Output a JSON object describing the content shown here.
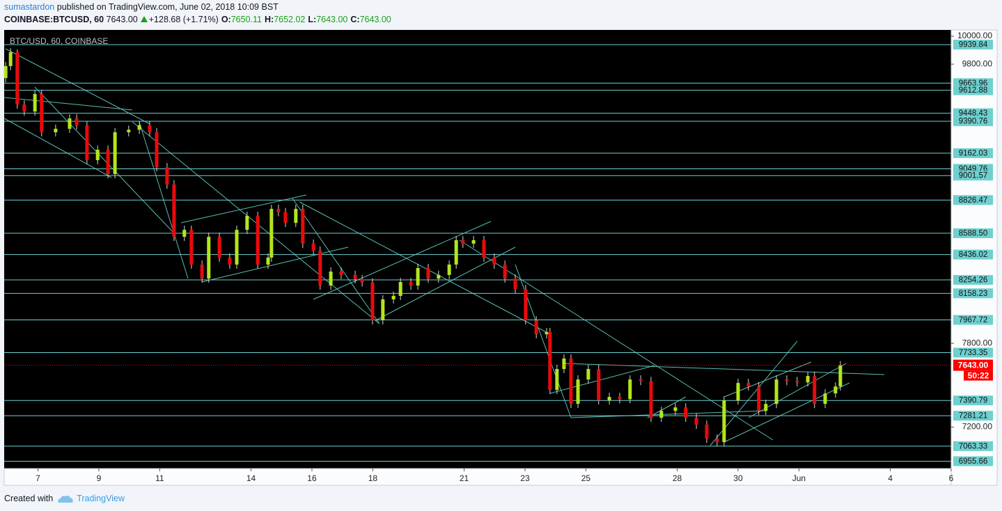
{
  "header": {
    "author": "sumastardon",
    "published": "published on TradingView.com, June 02, 2018 10:09 BST",
    "symbol": "COINBASE:BTCUSD, 60",
    "price": "7643.00",
    "change": "+128.68 (+1.71%)",
    "ohlc": [
      {
        "label": "O:",
        "value": "7650.11"
      },
      {
        "label": "H:",
        "value": "7652.02"
      },
      {
        "label": "L:",
        "value": "7643.00"
      },
      {
        "label": "C:",
        "value": "7643.00"
      }
    ]
  },
  "footer": {
    "created": "Created with",
    "brand": "TradingView"
  },
  "chart_data": {
    "type": "candlestick",
    "title": "BTC/USD, 60, COINBASE",
    "up_color": "#b3e61a",
    "down_color": "#ea0a0a",
    "wick_color": "#d8d8d8",
    "x": [
      5.94,
      6.1,
      6.32,
      6.55,
      6.9,
      7.12,
      7.58,
      8.04,
      8.27,
      8.61,
      8.96,
      9.3,
      9.53,
      9.98,
      10.33,
      10.67,
      10.9,
      11.24,
      11.47,
      11.81,
      12.04,
      12.39,
      12.61,
      12.96,
      13.3,
      13.53,
      13.87,
      14.22,
      14.56,
      14.67,
      14.9,
      15.13,
      15.47,
      15.7,
      16.05,
      16.27,
      16.62,
      16.96,
      17.42,
      17.65,
      17.99,
      18.33,
      18.68,
      18.91,
      19.25,
      19.48,
      19.82,
      20.16,
      20.51,
      20.74,
      20.96,
      21.31,
      21.65,
      21.99,
      22.34,
      22.68,
      23.02,
      23.37,
      23.71,
      23.82,
      24.05,
      24.28,
      24.51,
      24.74,
      25.08,
      25.42,
      25.77,
      26.11,
      26.45,
      26.8,
      27.14,
      27.48,
      27.94,
      28.28,
      28.63,
      28.97,
      29.31,
      29.54,
      30.0,
      30.34,
      30.68,
      30.91,
      31.26,
      31.6,
      31.94,
      32.29,
      32.51,
      32.86,
      33.2,
      33.36
    ],
    "open": [
      9700,
      9786,
      9885,
      9511,
      9461,
      9586,
      9312,
      9337,
      9411,
      9362,
      9112,
      9187,
      9012,
      9312,
      9330,
      9362,
      9312,
      9062,
      8938,
      8563,
      8613,
      8364,
      8264,
      8563,
      8414,
      8364,
      8613,
      8713,
      8364,
      8414,
      8763,
      8740,
      8663,
      8763,
      8514,
      8464,
      8214,
      8314,
      8290,
      8260,
      8236,
      7965,
      8115,
      8140,
      8239,
      8214,
      8339,
      8264,
      8290,
      8364,
      8539,
      8514,
      8539,
      8414,
      8364,
      8264,
      8189,
      7965,
      7865,
      7880,
      7466,
      7616,
      7691,
      7366,
      7541,
      7616,
      7391,
      7416,
      7400,
      7541,
      7530,
      7267,
      7316,
      7341,
      7267,
      7217,
      7117,
      7092,
      7391,
      7516,
      7491,
      7316,
      7366,
      7541,
      7530,
      7520,
      7566,
      7366,
      7441,
      7491
    ],
    "high": [
      9816,
      9915,
      9905,
      9541,
      9616,
      9616,
      9367,
      9441,
      9441,
      9392,
      9217,
      9217,
      9342,
      9360,
      9392,
      9392,
      9342,
      9092,
      8968,
      8643,
      8643,
      8394,
      8593,
      8593,
      8444,
      8643,
      8743,
      8743,
      8444,
      8793,
      8793,
      8770,
      8793,
      8793,
      8544,
      8494,
      8344,
      8344,
      8320,
      8290,
      8266,
      8145,
      8170,
      8269,
      8269,
      8369,
      8369,
      8320,
      8394,
      8569,
      8569,
      8569,
      8569,
      8444,
      8394,
      8294,
      8219,
      7995,
      7910,
      7910,
      7646,
      7721,
      7721,
      7571,
      7646,
      7646,
      7446,
      7446,
      7571,
      7571,
      7560,
      7346,
      7371,
      7371,
      7297,
      7247,
      7147,
      7421,
      7546,
      7546,
      7521,
      7396,
      7571,
      7571,
      7560,
      7596,
      7596,
      7471,
      7521,
      7673
    ],
    "low": [
      9670,
      9756,
      9481,
      9431,
      9431,
      9282,
      9282,
      9307,
      9332,
      9082,
      9082,
      8982,
      8982,
      9282,
      9300,
      9282,
      9032,
      8908,
      8533,
      8533,
      8334,
      8234,
      8234,
      8384,
      8334,
      8334,
      8583,
      8334,
      8334,
      8384,
      8710,
      8633,
      8633,
      8484,
      8434,
      8184,
      8184,
      8260,
      8230,
      8206,
      7935,
      7935,
      8085,
      8110,
      8184,
      8184,
      8234,
      8234,
      8260,
      8334,
      8484,
      8484,
      8384,
      8334,
      8234,
      8159,
      7935,
      7835,
      7835,
      7436,
      7436,
      7586,
      7336,
      7336,
      7511,
      7361,
      7361,
      7370,
      7370,
      7500,
      7237,
      7237,
      7286,
      7237,
      7187,
      7087,
      7062,
      7062,
      7361,
      7461,
      7286,
      7286,
      7336,
      7500,
      7490,
      7490,
      7336,
      7336,
      7411,
      7461
    ],
    "close": [
      9786,
      9885,
      9511,
      9461,
      9586,
      9312,
      9337,
      9411,
      9362,
      9112,
      9187,
      9012,
      9312,
      9330,
      9362,
      9312,
      9062,
      8938,
      8563,
      8613,
      8364,
      8264,
      8563,
      8414,
      8364,
      8613,
      8713,
      8364,
      8414,
      8763,
      8740,
      8663,
      8763,
      8514,
      8464,
      8214,
      8314,
      8290,
      8260,
      8236,
      7965,
      8115,
      8140,
      8239,
      8214,
      8339,
      8264,
      8290,
      8364,
      8539,
      8514,
      8539,
      8414,
      8364,
      8264,
      8189,
      7965,
      7865,
      7880,
      7466,
      7616,
      7691,
      7366,
      7541,
      7616,
      7391,
      7416,
      7400,
      7541,
      7530,
      7267,
      7316,
      7341,
      7267,
      7217,
      7117,
      7092,
      7391,
      7516,
      7491,
      7316,
      7366,
      7541,
      7530,
      7520,
      7566,
      7366,
      7441,
      7491,
      7643
    ],
    "xlim": [
      5.89,
      37
    ],
    "xticks": [
      7,
      9,
      11,
      14,
      16,
      18,
      21,
      23,
      25,
      28,
      30,
      {
        "value": 32,
        "label": "Jun"
      },
      {
        "value": 35,
        "label": "4"
      },
      {
        "value": 37,
        "label": "6"
      }
    ],
    "ylim": [
      6903,
      10045
    ],
    "yticks": [
      {
        "value": 10000,
        "label": "10000.00"
      },
      {
        "value": 9800,
        "label": "9800.00"
      },
      {
        "value": 7800,
        "label": "7800.00"
      },
      {
        "value": 7200,
        "label": "7200.00"
      }
    ],
    "horizontal_lines": {
      "color": "#6fd0d0",
      "values": [
        9939.84,
        9663.96,
        9612.88,
        9448.43,
        9390.76,
        9162.03,
        9049.76,
        9001.57,
        8826.47,
        8588.5,
        8436.02,
        8254.26,
        8158.23,
        7967.72,
        7733.35,
        7390.79,
        7281.21,
        7063.33,
        6955.66
      ],
      "value_labels": [
        "9939.84",
        "9663.96",
        "9612.88",
        "9448.43",
        "9390.76",
        "9162.03",
        "9049.76",
        "9001.57",
        "8826.47",
        "8588.50",
        "8436.02",
        "8254.26",
        "8158.23",
        "7967.72",
        "7733.35",
        "7390.79",
        "7281.21",
        "7063.33",
        "6955.66"
      ]
    },
    "last_price": {
      "value": 7643,
      "label": "7643.00",
      "color": "#ff0000"
    },
    "countdown": "50:22"
  }
}
